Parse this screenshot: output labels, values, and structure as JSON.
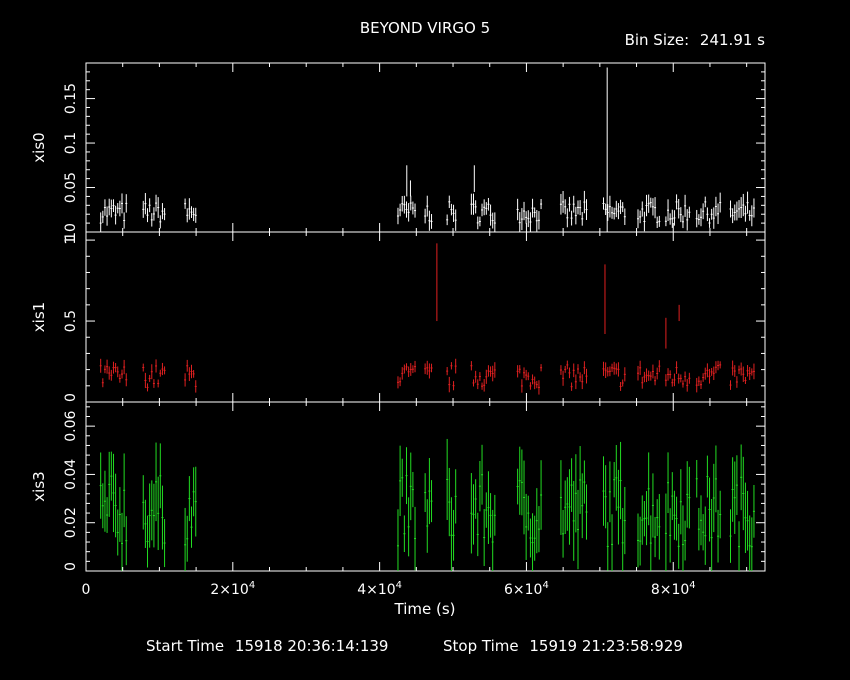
{
  "title": "BEYOND VIRGO 5",
  "bin_size_label": "Bin Size:",
  "bin_size": "241.91 s",
  "footer": {
    "start_label": "Start Time",
    "start_value": "15918 20:36:14:139",
    "stop_label": "Stop Time",
    "stop_value": "15919 21:23:58:929"
  },
  "chart_data": {
    "type": "scatter",
    "xlabel": "Time (s)",
    "xlim": [
      0,
      92500
    ],
    "x_ticks": [
      {
        "value": 0,
        "mantissa": "0",
        "exp": ""
      },
      {
        "value": 20000,
        "mantissa": "2×10",
        "exp": "4"
      },
      {
        "value": 40000,
        "mantissa": "4×10",
        "exp": "4"
      },
      {
        "value": 60000,
        "mantissa": "6×10",
        "exp": "4"
      },
      {
        "value": 80000,
        "mantissa": "8×10",
        "exp": "4"
      }
    ],
    "grid": false,
    "panels": [
      {
        "name": "xis0",
        "color": "#ffffff",
        "ylim": [
          0,
          0.19
        ],
        "yticks": [
          {
            "value": 0.05,
            "label": "0.05"
          },
          {
            "value": 0.1,
            "label": "0.1"
          },
          {
            "value": 0.15,
            "label": "0.15"
          }
        ],
        "bottom_label": "0",
        "top_label": "",
        "base": 0.022,
        "spread": 0.012,
        "err": 0.009,
        "spikes": [
          {
            "x": 71000,
            "y": 0.185,
            "lo": 0.0
          },
          {
            "x": 43700,
            "y": 0.075,
            "lo": 0.04
          },
          {
            "x": 52900,
            "y": 0.075,
            "lo": 0.045
          },
          {
            "x": 44200,
            "y": 0.058,
            "lo": 0.04
          }
        ]
      },
      {
        "name": "xis1",
        "color": "#e02020",
        "ylim": [
          0,
          1.05
        ],
        "yticks": [
          {
            "value": 0.5,
            "label": "0.5"
          },
          {
            "value": 1.0,
            "label": "1"
          }
        ],
        "bottom_label": "0",
        "top_label": "1",
        "base": 0.16,
        "spread": 0.07,
        "err": 0.035,
        "spikes": [
          {
            "x": 47800,
            "y": 0.98,
            "lo": 0.5
          },
          {
            "x": 70700,
            "y": 0.85,
            "lo": 0.42
          },
          {
            "x": 80800,
            "y": 0.6,
            "lo": 0.5
          },
          {
            "x": 79000,
            "y": 0.52,
            "lo": 0.33
          }
        ]
      },
      {
        "name": "xis3",
        "color": "#22dd22",
        "ylim": [
          0,
          0.07
        ],
        "yticks": [
          {
            "value": 0.02,
            "label": "0.02"
          },
          {
            "value": 0.04,
            "label": "0.04"
          },
          {
            "value": 0.06,
            "label": "0.06"
          }
        ],
        "bottom_label": "0",
        "top_label": "",
        "base": 0.025,
        "spread": 0.015,
        "err": 0.012,
        "spikes": []
      }
    ],
    "segments": [
      [
        2000,
        5500
      ],
      [
        7800,
        10800
      ],
      [
        13500,
        15100
      ],
      [
        42500,
        44900
      ],
      [
        46200,
        47200
      ],
      [
        49200,
        50500
      ],
      [
        52500,
        55900
      ],
      [
        58800,
        62200
      ],
      [
        64700,
        68200
      ],
      [
        70500,
        73600
      ],
      [
        75200,
        78200
      ],
      [
        79000,
        82400
      ],
      [
        83200,
        86600
      ],
      [
        87800,
        91200
      ]
    ]
  }
}
